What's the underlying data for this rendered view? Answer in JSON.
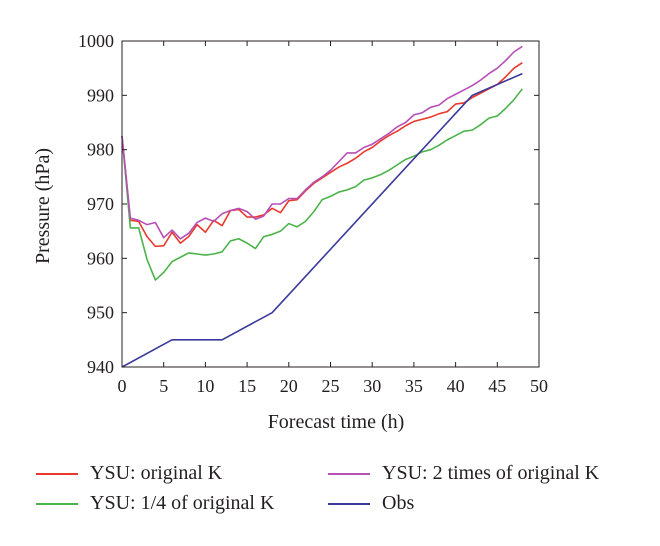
{
  "chart_data": {
    "type": "line",
    "xlabel": "Forecast time (h)",
    "ylabel": "Pressure (hPa)",
    "xlim": [
      0,
      50
    ],
    "ylim": [
      940,
      1000
    ],
    "xticks": [
      0,
      5,
      10,
      15,
      20,
      25,
      30,
      35,
      40,
      45,
      50
    ],
    "yticks": [
      940,
      950,
      960,
      970,
      980,
      990,
      1000
    ],
    "grid": false,
    "legend_position": "bottom",
    "series": [
      {
        "name": "YSU: original K",
        "color": "#e8392b",
        "x": [
          0,
          1,
          2,
          3,
          4,
          5,
          6,
          7,
          8,
          9,
          10,
          11,
          12,
          13,
          14,
          15,
          16,
          17,
          18,
          19,
          20,
          21,
          22,
          23,
          24,
          25,
          26,
          27,
          28,
          29,
          30,
          31,
          32,
          33,
          34,
          35,
          36,
          37,
          38,
          39,
          40,
          41,
          42,
          43,
          44,
          45,
          46,
          47,
          48
        ],
        "y": [
          982.5,
          967,
          966.8,
          964,
          962.2,
          962.3,
          964.8,
          962.8,
          964,
          966.2,
          964.8,
          967,
          966,
          968.8,
          969,
          967.6,
          967.6,
          968,
          969.2,
          968.4,
          970.6,
          970.8,
          972.4,
          973.8,
          974.8,
          975.8,
          976.8,
          977.5,
          978.4,
          979.6,
          980.4,
          981.6,
          982.6,
          983.4,
          984.4,
          985.2,
          985.6,
          986,
          986.6,
          987,
          988.4,
          988.6,
          989.6,
          990.4,
          991.2,
          992,
          993.4,
          995,
          996
        ]
      },
      {
        "name": "YSU: 1/4 of original K",
        "color": "#4cb34a",
        "x": [
          0,
          1,
          2,
          3,
          4,
          5,
          6,
          7,
          8,
          9,
          10,
          11,
          12,
          13,
          14,
          15,
          16,
          17,
          18,
          19,
          20,
          21,
          22,
          23,
          24,
          25,
          26,
          27,
          28,
          29,
          30,
          31,
          32,
          33,
          34,
          35,
          36,
          37,
          38,
          39,
          40,
          41,
          42,
          43,
          44,
          45,
          46,
          47,
          48
        ],
        "y": [
          982.5,
          965.6,
          965.6,
          959.8,
          956,
          957.4,
          959.4,
          960.2,
          961,
          960.8,
          960.6,
          960.8,
          961.2,
          963.2,
          963.6,
          962.8,
          961.8,
          964,
          964.4,
          965,
          966.4,
          965.8,
          966.8,
          968.6,
          970.8,
          971.4,
          972.2,
          972.6,
          973.2,
          974.4,
          974.8,
          975.4,
          976.2,
          977.2,
          978.2,
          978.8,
          979.6,
          980,
          980.8,
          981.8,
          982.6,
          983.4,
          983.6,
          984.6,
          985.8,
          986.2,
          987.6,
          989.2,
          991.2
        ]
      },
      {
        "name": "YSU: 2 times of original K",
        "color": "#b64fb6",
        "x": [
          0,
          1,
          2,
          3,
          4,
          5,
          6,
          7,
          8,
          9,
          10,
          11,
          12,
          13,
          14,
          15,
          16,
          17,
          18,
          19,
          20,
          21,
          22,
          23,
          24,
          25,
          26,
          27,
          28,
          29,
          30,
          31,
          32,
          33,
          34,
          35,
          36,
          37,
          38,
          39,
          40,
          41,
          42,
          43,
          44,
          45,
          46,
          47,
          48
        ],
        "y": [
          982.5,
          967.4,
          967,
          966.2,
          966.6,
          963.8,
          965.2,
          963.6,
          964.6,
          966.6,
          967.4,
          966.8,
          968.2,
          968.8,
          969.2,
          968.6,
          967.2,
          967.8,
          970,
          970,
          971,
          971,
          972.6,
          974,
          975,
          976.2,
          977.8,
          979.4,
          979.4,
          980.4,
          981,
          982,
          983,
          984.2,
          985,
          986.4,
          986.8,
          987.8,
          988.2,
          989.4,
          990.2,
          991,
          991.8,
          992.8,
          994,
          995,
          996.4,
          998,
          999
        ]
      },
      {
        "name": "Obs",
        "color": "#3a3a9c",
        "x": [
          0,
          6,
          12,
          18,
          42,
          48
        ],
        "y": [
          940,
          945,
          945,
          950,
          990,
          994
        ]
      }
    ]
  }
}
